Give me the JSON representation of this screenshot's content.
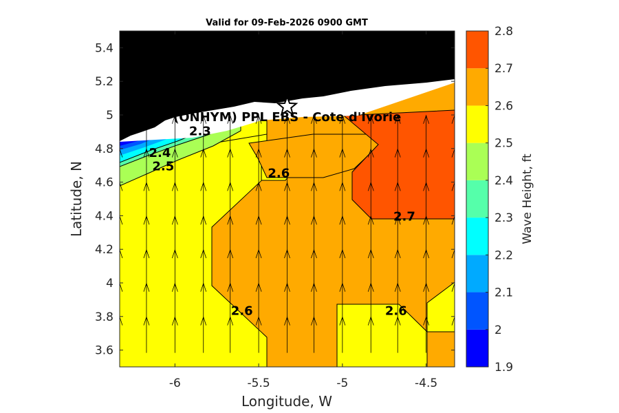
{
  "chart_data": {
    "type": "contour",
    "title": "Valid for 09-Feb-2026 0900 GMT",
    "xlabel": "Longitude, W",
    "ylabel": "Latitude, N",
    "xlim": [
      -6.33,
      -4.33
    ],
    "ylim": [
      3.5,
      5.5
    ],
    "xticks": [
      -6,
      -5.5,
      -5,
      -4.5
    ],
    "xtick_labels": [
      "-6",
      "-5.5",
      "-5",
      "-4.5"
    ],
    "yticks": [
      3.6,
      3.8,
      4,
      4.2,
      4.4,
      4.6,
      4.8,
      5,
      5.2,
      5.4
    ],
    "ytick_labels": [
      "3.6",
      "3.8",
      "4",
      "4.2",
      "4.4",
      "4.6",
      "4.8",
      "5",
      "5.2",
      "5.4"
    ],
    "site_label": "(ONHYM) PPL EBS  - Cote d'Ivorie",
    "site_marker": {
      "lon": -5.33,
      "lat": 5.05,
      "symbol": "star"
    },
    "colorbar": {
      "label": "Wave Height, ft",
      "levels": [
        1.9,
        2.0,
        2.1,
        2.2,
        2.3,
        2.4,
        2.5,
        2.6,
        2.7,
        2.8
      ],
      "tick_labels": [
        "1.9",
        "2",
        "2.1",
        "2.2",
        "2.3",
        "2.4",
        "2.5",
        "2.6",
        "2.7",
        "2.8"
      ],
      "colors": [
        "#0000ff",
        "#0055ff",
        "#00aaff",
        "#00ffff",
        "#55ffaa",
        "#aaff55",
        "#ffff00",
        "#ffaa00",
        "#ff5500"
      ]
    },
    "land_color": "#000000",
    "contour_labels": [
      {
        "text": "2.3",
        "lon": -5.85,
        "lat": 4.88
      },
      {
        "text": "2.4",
        "lon": -6.09,
        "lat": 4.75
      },
      {
        "text": "2.5",
        "lon": -6.07,
        "lat": 4.67
      },
      {
        "text": "2.6",
        "lon": -5.38,
        "lat": 4.63
      },
      {
        "text": "2.7",
        "lon": -4.63,
        "lat": 4.37
      },
      {
        "text": "2.6",
        "lon": -5.6,
        "lat": 3.81
      },
      {
        "text": "2.6",
        "lon": -4.68,
        "lat": 3.81
      }
    ],
    "wave_direction": "northward",
    "arrow_columns_lon": [
      -6.33,
      -6.17,
      -6.0,
      -5.83,
      -5.67,
      -5.5,
      -5.33,
      -5.17,
      -5.0,
      -4.83,
      -4.67,
      -4.5,
      -4.33
    ],
    "arrow_rows_lat": [
      3.6,
      3.8,
      4.0,
      4.2,
      4.4,
      4.6,
      4.8
    ]
  }
}
